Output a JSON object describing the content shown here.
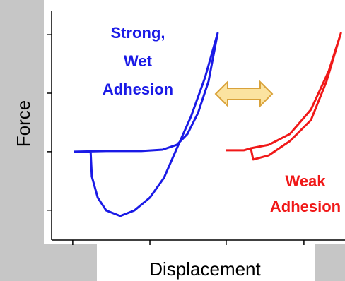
{
  "chart_data": {
    "type": "line",
    "xlabel": "Displacement",
    "ylabel": "Force",
    "xlim": [
      0,
      100
    ],
    "ylim": [
      0,
      100
    ],
    "xticks": [
      7.2,
      33.5,
      59.5,
      86
    ],
    "yticks": [
      13,
      38.5,
      64,
      89.5
    ],
    "series": [
      {
        "color": "#1a1ae6",
        "x": [
          7.7,
          18.6,
          30.6,
          37.8,
          42.7,
          46.3,
          49.9,
          53.5,
          56.6,
          52.3,
          47.5,
          42.7,
          38.3,
          33.5,
          28.2,
          23.4,
          18.6,
          15.7,
          13.7,
          13.3,
          7.7
        ],
        "values": [
          38.5,
          38.8,
          38.8,
          39.4,
          41.5,
          46.2,
          55.4,
          69.2,
          90.2,
          70.8,
          53.8,
          40.0,
          27.1,
          18.5,
          12.9,
          10.5,
          12.9,
          18.5,
          27.7,
          38.5,
          38.5
        ]
      },
      {
        "color": "#f01818",
        "x": [
          59.5,
          65.5,
          67.9,
          74.0,
          81.2,
          88.4,
          94.5,
          98.6,
          93.7,
          88.4,
          81.2,
          74.0,
          68.7,
          67.9
        ],
        "values": [
          39.1,
          39.1,
          40.0,
          41.5,
          46.2,
          56.9,
          73.8,
          90.2,
          69.2,
          52.3,
          43.1,
          36.9,
          35.1,
          40.0
        ]
      }
    ],
    "annotations": [
      {
        "lines": [
          "Strong,",
          "Wet",
          "Adhesion"
        ],
        "color": "#1a1ae6"
      },
      {
        "lines": [
          "Weak",
          "Adhesion"
        ],
        "color": "#f01818"
      }
    ]
  }
}
